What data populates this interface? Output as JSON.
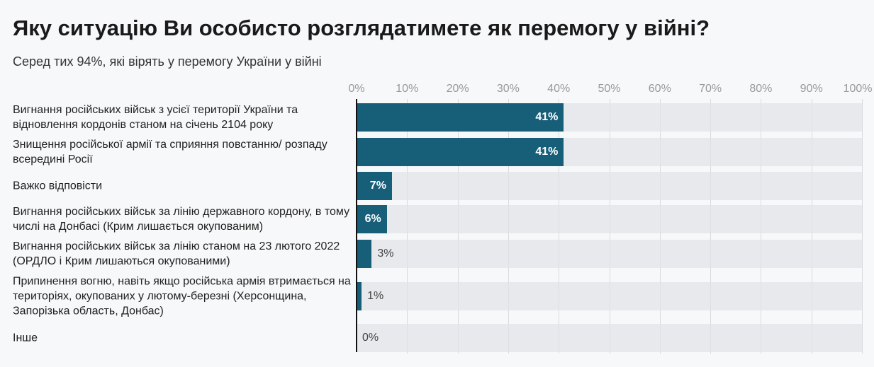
{
  "chart_data": {
    "type": "bar",
    "orientation": "horizontal",
    "title": "Яку ситуацію Ви особисто розглядатимете як перемогу у війні?",
    "subtitle": "Серед тих 94%, які вірять у перемогу України у війні",
    "categories": [
      "Вигнання російських військ з усієї території України та відновлення кордонів станом на січень 2104 року",
      "Знищення російської армії та сприяння повстанню/ розпаду всередині Росії",
      "Важко відповісти",
      "Вигнання російських військ за лінію державного кордону, в тому числі на Донбасі (Крим лишається окупованим)",
      "Вигнання російських військ за лінію станом на 23 лютого 2022 (ОРДЛО і Крим лишаються окупованими)",
      "Припинення вогню, навіть якщо російська армія втримається на територіях, окупованих у лютому-березні (Херсонщина, Запорізька область, Донбас)",
      "Інше"
    ],
    "values": [
      41,
      41,
      7,
      6,
      3,
      1,
      0
    ],
    "value_labels": [
      "41%",
      "41%",
      "7%",
      "6%",
      "3%",
      "1%",
      "0%"
    ],
    "xlim": [
      0,
      100
    ],
    "xticks": [
      "0%",
      "10%",
      "20%",
      "30%",
      "40%",
      "50%",
      "60%",
      "70%",
      "80%",
      "90%",
      "100%"
    ],
    "grid": true,
    "bar_color": "#175e79"
  }
}
